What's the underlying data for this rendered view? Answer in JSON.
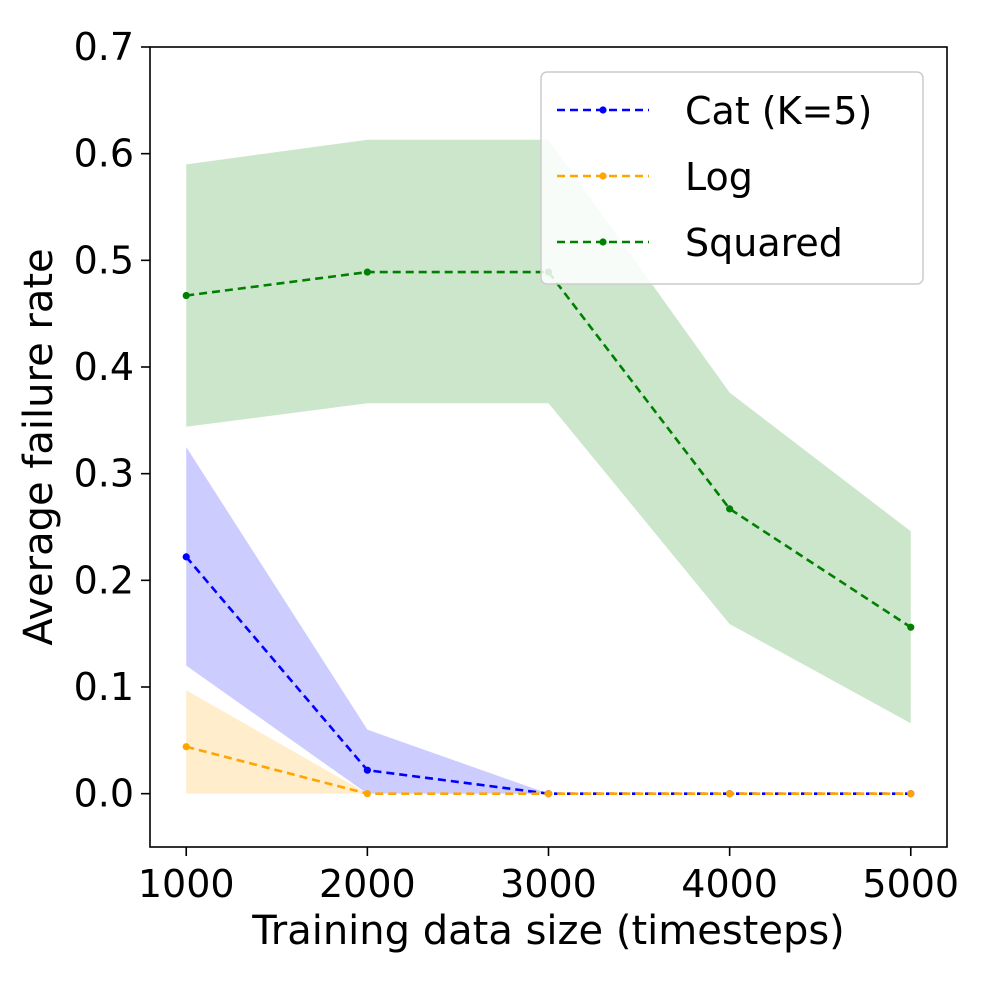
{
  "chart_data": {
    "type": "line",
    "title": "",
    "xlabel": "Training data size (timesteps)",
    "ylabel": "Average failure rate",
    "x": [
      1000,
      2000,
      3000,
      4000,
      5000
    ],
    "xlim": [
      800,
      5200
    ],
    "ylim": [
      -0.05,
      0.7
    ],
    "xticks": [
      1000,
      2000,
      3000,
      4000,
      5000
    ],
    "xtick_labels": [
      "1000",
      "2000",
      "3000",
      "4000",
      "5000"
    ],
    "yticks": [
      0.0,
      0.1,
      0.2,
      0.3,
      0.4,
      0.5,
      0.6,
      0.7
    ],
    "ytick_labels": [
      "0.0",
      "0.1",
      "0.2",
      "0.3",
      "0.4",
      "0.5",
      "0.6",
      "0.7"
    ],
    "grid": false,
    "legend_position": "top-right",
    "series": [
      {
        "name": "Cat (K=5)",
        "color": "#0000ff",
        "fill_color": "#0000ff",
        "fill_opacity": 0.2,
        "values": [
          0.222,
          0.022,
          0.0,
          0.0,
          0.0
        ],
        "lower": [
          0.12,
          0.0,
          0.0,
          0.0,
          0.0
        ],
        "upper": [
          0.325,
          0.06,
          0.0,
          0.0,
          0.0
        ]
      },
      {
        "name": "Log",
        "color": "#ffa500",
        "fill_color": "#ffa500",
        "fill_opacity": 0.2,
        "values": [
          0.044,
          0.0,
          0.0,
          0.0,
          0.0
        ],
        "lower": [
          0.0,
          0.0,
          0.0,
          0.0,
          0.0
        ],
        "upper": [
          0.097,
          0.0,
          0.0,
          0.0,
          0.0
        ]
      },
      {
        "name": "Squared",
        "color": "#008000",
        "fill_color": "#008000",
        "fill_opacity": 0.2,
        "values": [
          0.467,
          0.489,
          0.489,
          0.267,
          0.156
        ],
        "lower": [
          0.344,
          0.366,
          0.366,
          0.159,
          0.066
        ],
        "upper": [
          0.59,
          0.613,
          0.613,
          0.376,
          0.246
        ]
      }
    ]
  }
}
